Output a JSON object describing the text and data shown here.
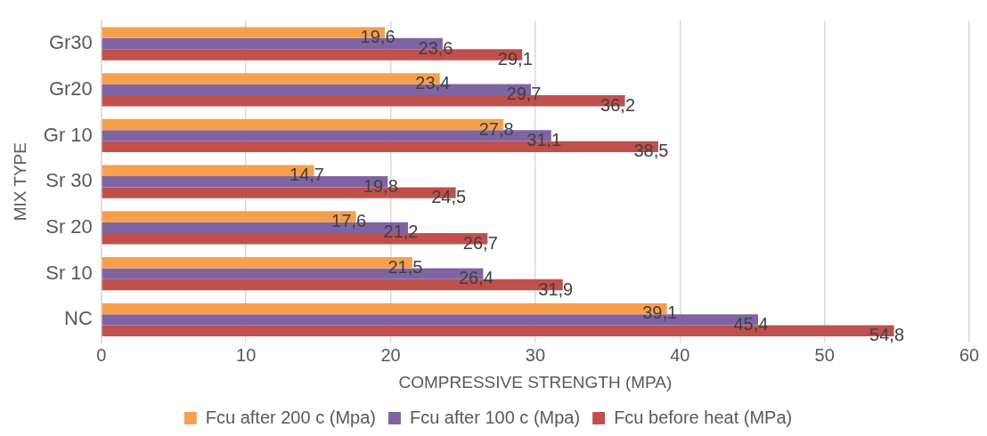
{
  "chart_data": {
    "type": "bar",
    "orientation": "horizontal",
    "xlabel": "COMPRESSIVE STRENGTH (MPA)",
    "ylabel": "MIX TYPE",
    "categories": [
      "Gr30",
      "Gr20",
      "Gr 10",
      "Sr 30",
      "Sr 20",
      "Sr 10",
      "NC"
    ],
    "series": [
      {
        "name": "Fcu after 200 c (Mpa)",
        "color": "#f6a04d",
        "values": [
          19.6,
          23.4,
          27.8,
          14.7,
          17.6,
          21.5,
          39.1
        ],
        "value_labels": [
          "19,6",
          "23,4",
          "27,8",
          "14,7",
          "17,6",
          "21,5",
          "39,1"
        ]
      },
      {
        "name": "Fcu after 100 c (Mpa)",
        "color": "#8064a2",
        "values": [
          23.6,
          29.7,
          31.1,
          19.8,
          21.2,
          26.4,
          45.4
        ],
        "value_labels": [
          "23,6",
          "29,7",
          "31,1",
          "19,8",
          "21,2",
          "26,4",
          "45,4"
        ]
      },
      {
        "name": "Fcu before heat (MPa)",
        "color": "#c0504d",
        "values": [
          29.1,
          36.2,
          38.5,
          24.5,
          26.7,
          31.9,
          54.8
        ],
        "value_labels": [
          "29,1",
          "36,2",
          "38,5",
          "24,5",
          "26,7",
          "31,9",
          "54,8"
        ]
      }
    ],
    "xlim": [
      0,
      60
    ],
    "xticks": [
      0,
      10,
      20,
      30,
      40,
      50,
      60
    ],
    "grid": "x",
    "legend": "bottom"
  }
}
